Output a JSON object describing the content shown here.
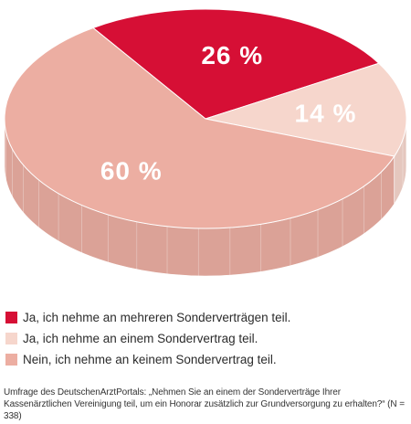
{
  "chart_data": {
    "type": "pie",
    "title": "",
    "categories": [
      "Ja, ich nehme an mehreren Sonderverträgen teil.",
      "Ja, ich nehme an einem Sondervertrag teil.",
      "Nein, ich nehme an keinem Sondervertrag teil."
    ],
    "values": [
      26,
      14,
      60
    ],
    "value_labels": [
      "26 %",
      "14 %",
      "60 %"
    ],
    "colors": [
      "#d60f35",
      "#f6d6cc",
      "#ecaea2"
    ],
    "legend_position": "bottom"
  },
  "legend": {
    "items": [
      {
        "label": "Ja, ich nehme an mehreren Sonderverträgen teil.",
        "color": "#d60f35"
      },
      {
        "label": "Ja, ich nehme an einem Sondervertrag teil.",
        "color": "#f6d6cc"
      },
      {
        "label": "Nein, ich nehme an keinem Sondervertrag teil.",
        "color": "#ecaea2"
      }
    ]
  },
  "footnote": "Umfrage des DeutschenArztPortals: „Nehmen Sie an einem der Sonderverträge Ihrer Kassenärztlichen Vereinigung teil, um ein Honorar zusätzlich zur Grundversorgung zu erhalten?“ (N = 338)"
}
